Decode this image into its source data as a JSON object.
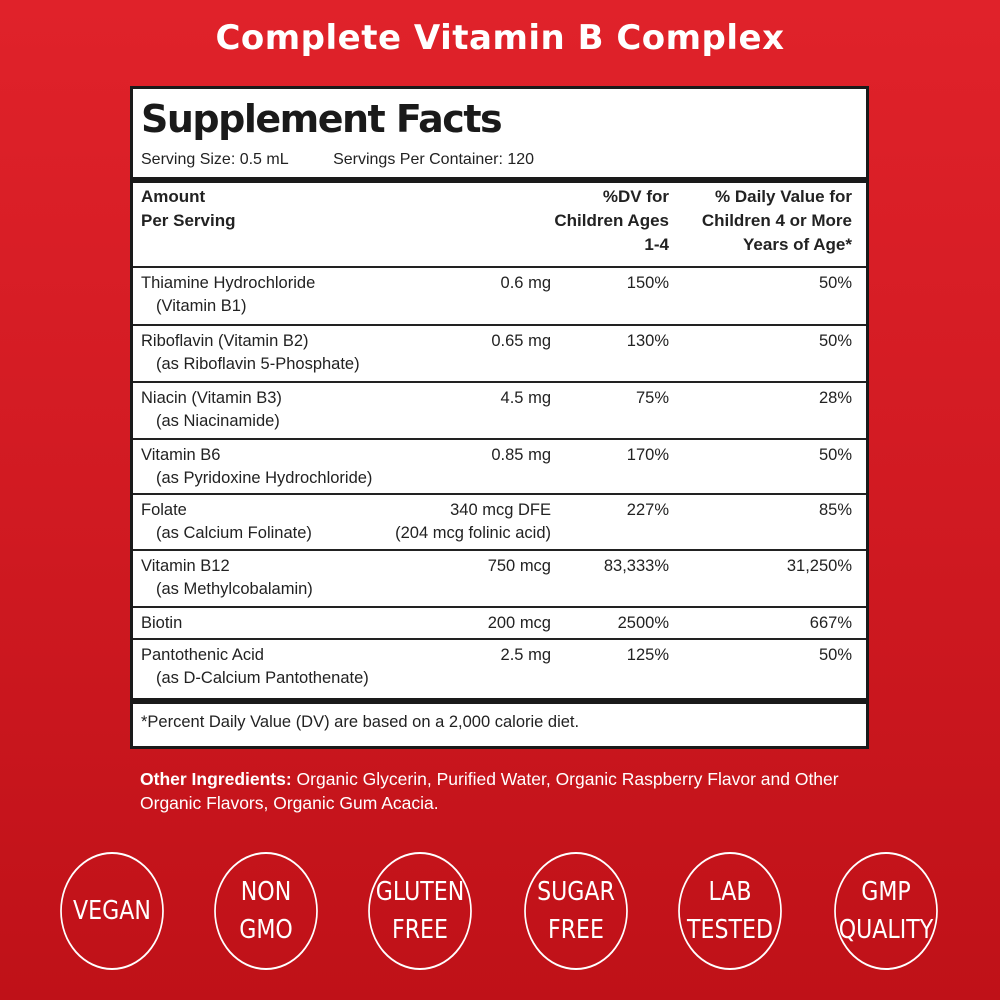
{
  "header": {
    "title": "Complete Vitamin B Complex"
  },
  "facts": {
    "title": "Supplement Facts",
    "serving_size": "Serving Size: 0.5 mL",
    "servings_per_container": "Servings Per Container: 120",
    "col_amount": [
      "Amount",
      "Per Serving"
    ],
    "col_dv1": [
      "%DV for",
      "Children Ages",
      "1-4"
    ],
    "col_dv2": [
      "% Daily Value for",
      "Children 4 or More",
      "Years of Age*"
    ],
    "rows": [
      {
        "name": "Thiamine Hydrochloride",
        "sub": "(Vitamin B1)",
        "amount": "0.6 mg",
        "amount2": "",
        "dv1": "150%",
        "dv2": "50%"
      },
      {
        "name": "Riboflavin (Vitamin B2)",
        "sub": "(as Riboflavin 5-Phosphate)",
        "amount": "0.65 mg",
        "amount2": "",
        "dv1": "130%",
        "dv2": "50%"
      },
      {
        "name": "Niacin (Vitamin B3)",
        "sub": "(as Niacinamide)",
        "amount": "4.5 mg",
        "amount2": "",
        "dv1": "75%",
        "dv2": "28%"
      },
      {
        "name": "Vitamin B6",
        "sub": "(as Pyridoxine Hydrochloride)",
        "amount": "0.85 mg",
        "amount2": "",
        "dv1": "170%",
        "dv2": "50%"
      },
      {
        "name": "Folate",
        "sub": "(as Calcium Folinate)",
        "amount": "340 mcg DFE",
        "amount2": "(204 mcg folinic acid)",
        "dv1": "227%",
        "dv2": "85%"
      },
      {
        "name": "Vitamin B12",
        "sub": "(as Methylcobalamin)",
        "amount": "750 mcg",
        "amount2": "",
        "dv1": "83,333%",
        "dv2": "31,250%"
      },
      {
        "name": "Biotin",
        "sub": "",
        "amount": "200 mcg",
        "amount2": "",
        "dv1": "2500%",
        "dv2": "667%"
      },
      {
        "name": "Pantothenic Acid",
        "sub": "(as D-Calcium Pantothenate)",
        "amount": "2.5 mg",
        "amount2": "",
        "dv1": "125%",
        "dv2": "50%"
      }
    ],
    "footnote": "*Percent Daily Value (DV) are based on a 2,000 calorie diet."
  },
  "other_ingredients": {
    "label": "Other Ingredients:",
    "text": " Organic Glycerin, Purified Water, Organic Raspberry Flavor and Other Organic Flavors, Organic Gum Acacia."
  },
  "badges": [
    [
      "VEGAN"
    ],
    [
      "NON",
      "GMO"
    ],
    [
      "GLUTEN",
      "FREE"
    ],
    [
      "SUGAR",
      "FREE"
    ],
    [
      "LAB",
      "TESTED"
    ],
    [
      "GMP",
      "QUALITY"
    ]
  ]
}
